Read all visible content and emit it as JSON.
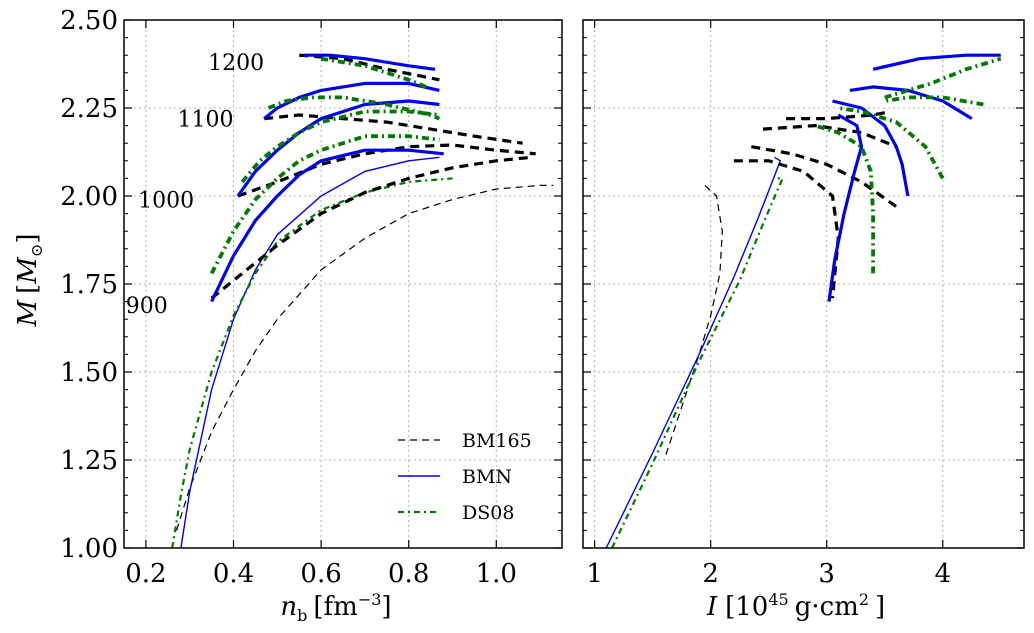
{
  "chart_data": [
    {
      "type": "line",
      "panel": "left",
      "xlabel": "n_b [fm^-3]",
      "xlabel_parts": {
        "var": "n",
        "sub": "b",
        "unit_open": "[fm",
        "unit_sup": "−3",
        "unit_close": "]"
      },
      "ylabel": "M [M_⊙]",
      "ylabel_parts": {
        "var": "M",
        "unit_open": "[",
        "unit_var": "M",
        "unit_sub": "⊙",
        "unit_close": "]"
      },
      "xlim": [
        0.15,
        1.15
      ],
      "ylim": [
        1.0,
        2.5
      ],
      "xticks": [
        0.2,
        0.4,
        0.6,
        0.8,
        1.0
      ],
      "xtick_labels": [
        "0.2",
        "0.4",
        "0.6",
        "0.8",
        "1.0"
      ],
      "yticks": [
        1.0,
        1.25,
        1.5,
        1.75,
        2.0,
        2.25,
        2.5
      ],
      "ytick_labels": [
        "1.00",
        "1.25",
        "1.50",
        "1.75",
        "2.00",
        "2.25",
        "2.50"
      ],
      "grid": true,
      "legend": {
        "placement": "lower-right",
        "entries": [
          {
            "label": "BM165",
            "series": "BM165"
          },
          {
            "label": "BMN",
            "series": "BMN"
          },
          {
            "label": "DS08",
            "series": "DS08"
          }
        ]
      },
      "annotations": [
        {
          "text": "1200",
          "x": 0.47,
          "y": 2.38
        },
        {
          "text": "1100",
          "x": 0.4,
          "y": 2.22
        },
        {
          "text": "1000",
          "x": 0.31,
          "y": 1.99
        },
        {
          "text": "900",
          "x": 0.25,
          "y": 1.69
        }
      ],
      "series": [
        {
          "name": "BM165",
          "kind": "static",
          "x": [
            0.27,
            0.3,
            0.35,
            0.4,
            0.45,
            0.5,
            0.6,
            0.7,
            0.8,
            0.9,
            1.0,
            1.05,
            1.1,
            1.13
          ],
          "y": [
            1.05,
            1.17,
            1.33,
            1.45,
            1.56,
            1.65,
            1.79,
            1.88,
            1.95,
            1.99,
            2.02,
            2.025,
            2.03,
            2.03
          ]
        },
        {
          "name": "BMN",
          "kind": "static",
          "x": [
            0.28,
            0.3,
            0.35,
            0.4,
            0.45,
            0.5,
            0.6,
            0.7,
            0.8,
            0.87
          ],
          "y": [
            1.0,
            1.16,
            1.45,
            1.65,
            1.79,
            1.89,
            2.0,
            2.07,
            2.1,
            2.11
          ]
        },
        {
          "name": "DS08",
          "kind": "static",
          "x": [
            0.26,
            0.28,
            0.3,
            0.35,
            0.4,
            0.45,
            0.5,
            0.6,
            0.7,
            0.8,
            0.9
          ],
          "y": [
            1.0,
            1.15,
            1.28,
            1.5,
            1.66,
            1.78,
            1.87,
            1.96,
            2.01,
            2.04,
            2.05
          ]
        },
        {
          "name": "BM165",
          "kind": "rot-900",
          "x": [
            0.35,
            0.4,
            0.5,
            0.6,
            0.7,
            0.8,
            0.9,
            1.0,
            1.08
          ],
          "y": [
            1.71,
            1.76,
            1.86,
            1.95,
            2.01,
            2.05,
            2.08,
            2.1,
            2.11
          ]
        },
        {
          "name": "BM165",
          "kind": "rot-1000",
          "x": [
            0.41,
            0.5,
            0.6,
            0.7,
            0.8,
            0.9,
            1.0,
            1.09
          ],
          "y": [
            2.0,
            2.04,
            2.09,
            2.12,
            2.14,
            2.145,
            2.13,
            2.12
          ]
        },
        {
          "name": "BM165",
          "kind": "rot-1100",
          "x": [
            0.47,
            0.55,
            0.65,
            0.75,
            0.85,
            0.95,
            1.06
          ],
          "y": [
            2.22,
            2.23,
            2.22,
            2.21,
            2.19,
            2.17,
            2.15
          ]
        },
        {
          "name": "BM165",
          "kind": "rot-1200",
          "x": [
            0.55,
            0.65,
            0.75,
            0.87
          ],
          "y": [
            2.4,
            2.39,
            2.36,
            2.33
          ]
        },
        {
          "name": "BMN",
          "kind": "rot-900",
          "x": [
            0.35,
            0.4,
            0.45,
            0.5,
            0.55,
            0.6,
            0.7,
            0.8,
            0.88
          ],
          "y": [
            1.7,
            1.83,
            1.93,
            2.0,
            2.06,
            2.1,
            2.13,
            2.13,
            2.12
          ]
        },
        {
          "name": "BMN",
          "kind": "rot-1000",
          "x": [
            0.41,
            0.45,
            0.5,
            0.55,
            0.6,
            0.7,
            0.8,
            0.87
          ],
          "y": [
            2.0,
            2.07,
            2.13,
            2.18,
            2.22,
            2.26,
            2.27,
            2.26
          ]
        },
        {
          "name": "BMN",
          "kind": "rot-1100",
          "x": [
            0.47,
            0.5,
            0.55,
            0.6,
            0.7,
            0.8,
            0.87
          ],
          "y": [
            2.22,
            2.25,
            2.28,
            2.3,
            2.32,
            2.32,
            2.3
          ]
        },
        {
          "name": "BMN",
          "kind": "rot-1200",
          "x": [
            0.56,
            0.62,
            0.7,
            0.8,
            0.86
          ],
          "y": [
            2.4,
            2.4,
            2.39,
            2.37,
            2.36
          ]
        },
        {
          "name": "DS08",
          "kind": "rot-900",
          "x": [
            0.35,
            0.4,
            0.45,
            0.5,
            0.55,
            0.6,
            0.7,
            0.8,
            0.87
          ],
          "y": [
            1.78,
            1.9,
            1.99,
            2.05,
            2.1,
            2.13,
            2.17,
            2.17,
            2.16
          ]
        },
        {
          "name": "DS08",
          "kind": "rot-1000",
          "x": [
            0.42,
            0.46,
            0.5,
            0.55,
            0.6,
            0.7,
            0.8,
            0.87
          ],
          "y": [
            2.04,
            2.1,
            2.14,
            2.18,
            2.21,
            2.24,
            2.24,
            2.23
          ]
        },
        {
          "name": "DS08",
          "kind": "rot-1100",
          "x": [
            0.48,
            0.52,
            0.58,
            0.65,
            0.75,
            0.85,
            0.87
          ],
          "y": [
            2.25,
            2.27,
            2.28,
            2.28,
            2.26,
            2.23,
            2.22
          ]
        },
        {
          "name": "DS08",
          "kind": "rot-1200",
          "x": [
            0.6,
            0.65,
            0.7,
            0.75,
            0.8,
            0.84
          ],
          "y": [
            2.39,
            2.38,
            2.37,
            2.35,
            2.33,
            2.31
          ]
        }
      ]
    },
    {
      "type": "line",
      "panel": "right",
      "xlabel": "I [10^45 g·cm^2]",
      "xlabel_parts": {
        "var": "I",
        "unit_open": "[10",
        "unit_sup": "45",
        "unit_mid": "g·cm",
        "unit_sup2": "2",
        "unit_close": "]"
      },
      "xlim": [
        0.9,
        4.7
      ],
      "ylim": [
        1.0,
        2.5
      ],
      "xticks": [
        1,
        2,
        3,
        4
      ],
      "xtick_labels": [
        "1",
        "2",
        "3",
        "4"
      ],
      "yticks": [
        1.0,
        1.25,
        1.5,
        1.75,
        2.0,
        2.25,
        2.5
      ],
      "grid": true,
      "series": [
        {
          "name": "BM165",
          "kind": "static",
          "x": [
            1.95,
            2.05,
            2.1,
            2.08,
            2.0,
            1.9,
            1.75,
            1.6
          ],
          "y": [
            2.03,
            2.0,
            1.9,
            1.78,
            1.66,
            1.55,
            1.4,
            1.25
          ]
        },
        {
          "name": "BMN",
          "kind": "static",
          "x": [
            1.1,
            1.5,
            1.9,
            2.2,
            2.4,
            2.53,
            2.6,
            2.55
          ],
          "y": [
            1.0,
            1.27,
            1.55,
            1.77,
            1.93,
            2.04,
            2.1,
            2.11
          ]
        },
        {
          "name": "DS08",
          "kind": "static",
          "x": [
            1.15,
            1.5,
            1.9,
            2.25,
            2.45,
            2.58,
            2.62,
            2.55
          ],
          "y": [
            1.0,
            1.24,
            1.53,
            1.76,
            1.92,
            2.02,
            2.05,
            2.05
          ]
        },
        {
          "name": "BM165",
          "kind": "rot-900",
          "x": [
            2.2,
            2.5,
            2.8,
            3.05,
            3.1,
            3.05
          ],
          "y": [
            2.1,
            2.1,
            2.07,
            2.0,
            1.88,
            1.71
          ]
        },
        {
          "name": "BM165",
          "kind": "rot-1000",
          "x": [
            2.35,
            2.7,
            3.0,
            3.3,
            3.6
          ],
          "y": [
            2.14,
            2.12,
            2.09,
            2.04,
            1.97
          ]
        },
        {
          "name": "BM165",
          "kind": "rot-1100",
          "x": [
            2.45,
            2.9,
            3.3,
            3.6
          ],
          "y": [
            2.19,
            2.2,
            2.18,
            2.14
          ]
        },
        {
          "name": "BM165",
          "kind": "rot-1200",
          "x": [
            2.65,
            3.0,
            3.4,
            3.55
          ],
          "y": [
            2.22,
            2.22,
            2.23,
            2.24
          ]
        },
        {
          "name": "BMN",
          "kind": "rot-900",
          "x": [
            3.02,
            3.07,
            3.15,
            3.24,
            3.3,
            3.26,
            3.1
          ],
          "y": [
            1.7,
            1.82,
            1.95,
            2.07,
            2.14,
            2.2,
            2.23
          ]
        },
        {
          "name": "BMN",
          "kind": "rot-1000",
          "x": [
            3.7,
            3.65,
            3.6,
            3.5,
            3.3,
            3.05
          ],
          "y": [
            2.0,
            2.09,
            2.14,
            2.2,
            2.25,
            2.27
          ]
        },
        {
          "name": "BMN",
          "kind": "rot-1100",
          "x": [
            4.25,
            4.0,
            3.7,
            3.4,
            3.2
          ],
          "y": [
            2.22,
            2.27,
            2.3,
            2.31,
            2.3
          ]
        },
        {
          "name": "BMN",
          "kind": "rot-1200",
          "x": [
            3.4,
            3.8,
            4.2,
            4.5
          ],
          "y": [
            2.36,
            2.39,
            2.4,
            2.4
          ]
        },
        {
          "name": "DS08",
          "kind": "rot-900",
          "x": [
            3.4,
            3.4,
            3.38,
            3.3,
            3.1,
            2.9
          ],
          "y": [
            1.78,
            1.95,
            2.07,
            2.14,
            2.18,
            2.2
          ]
        },
        {
          "name": "DS08",
          "kind": "rot-1000",
          "x": [
            4.0,
            3.85,
            3.6,
            3.3,
            3.1
          ],
          "y": [
            2.05,
            2.14,
            2.21,
            2.24,
            2.25
          ]
        },
        {
          "name": "DS08",
          "kind": "rot-1100",
          "x": [
            4.35,
            4.0,
            3.7,
            3.5
          ],
          "y": [
            2.26,
            2.28,
            2.28,
            2.27
          ]
        },
        {
          "name": "DS08",
          "kind": "rot-1200",
          "x": [
            3.5,
            3.9,
            4.2,
            4.5
          ],
          "y": [
            2.28,
            2.32,
            2.36,
            2.39
          ]
        }
      ]
    }
  ],
  "styles": {
    "BM165": {
      "color": "#000000"
    },
    "BMN": {
      "color": "#0000ee"
    },
    "DS08": {
      "color": "#007a00"
    }
  }
}
